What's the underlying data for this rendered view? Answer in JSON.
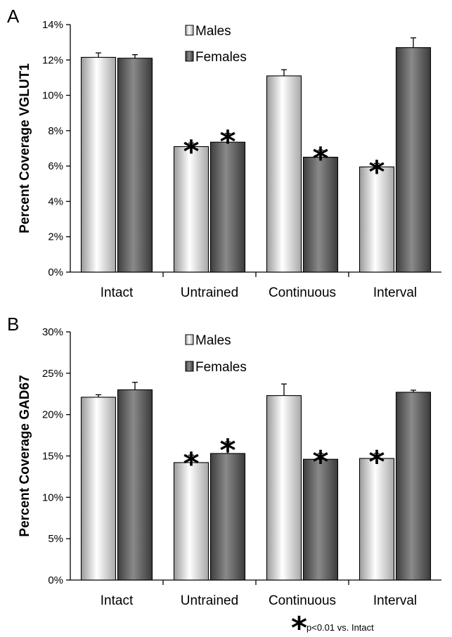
{
  "figure_note": {
    "symbol": "*",
    "text": "p<0.01 vs. Intact"
  },
  "chart_data": [
    {
      "panel": "A",
      "type": "bar",
      "ylabel": "Percent Coverage VGLUT1",
      "ylim": [
        0,
        14
      ],
      "yticks": [
        "0%",
        "2%",
        "4%",
        "6%",
        "8%",
        "10%",
        "12%",
        "14%"
      ],
      "categories": [
        "Intact",
        "Untrained",
        "Continuous",
        "Interval"
      ],
      "legend_position": "top-center",
      "series": [
        {
          "name": "Males",
          "color": "#e8e8e8",
          "values": [
            12.15,
            7.1,
            11.1,
            5.95
          ],
          "errors": [
            0.25,
            0.2,
            0.35,
            0.2
          ],
          "significant": [
            false,
            true,
            false,
            true
          ]
        },
        {
          "name": "Females",
          "color": "#6a6a6a",
          "values": [
            12.1,
            7.35,
            6.5,
            12.7
          ],
          "errors": [
            0.2,
            0.5,
            0.4,
            0.55
          ],
          "significant": [
            false,
            true,
            true,
            false
          ]
        }
      ]
    },
    {
      "panel": "B",
      "type": "bar",
      "ylabel": "Percent Coverage GAD67",
      "ylim": [
        0,
        30
      ],
      "yticks": [
        "0%",
        "5%",
        "10%",
        "15%",
        "20%",
        "25%",
        "30%"
      ],
      "categories": [
        "Intact",
        "Untrained",
        "Continuous",
        "Interval"
      ],
      "legend_position": "top-center",
      "series": [
        {
          "name": "Males",
          "color": "#e8e8e8",
          "values": [
            22.1,
            14.2,
            22.3,
            14.7
          ],
          "errors": [
            0.3,
            0.9,
            1.4,
            0.6
          ],
          "significant": [
            false,
            true,
            false,
            true
          ]
        },
        {
          "name": "Females",
          "color": "#6a6a6a",
          "values": [
            23.0,
            15.3,
            14.6,
            22.7
          ],
          "errors": [
            0.9,
            1.4,
            0.7,
            0.25
          ],
          "significant": [
            false,
            true,
            true,
            false
          ]
        }
      ]
    }
  ]
}
